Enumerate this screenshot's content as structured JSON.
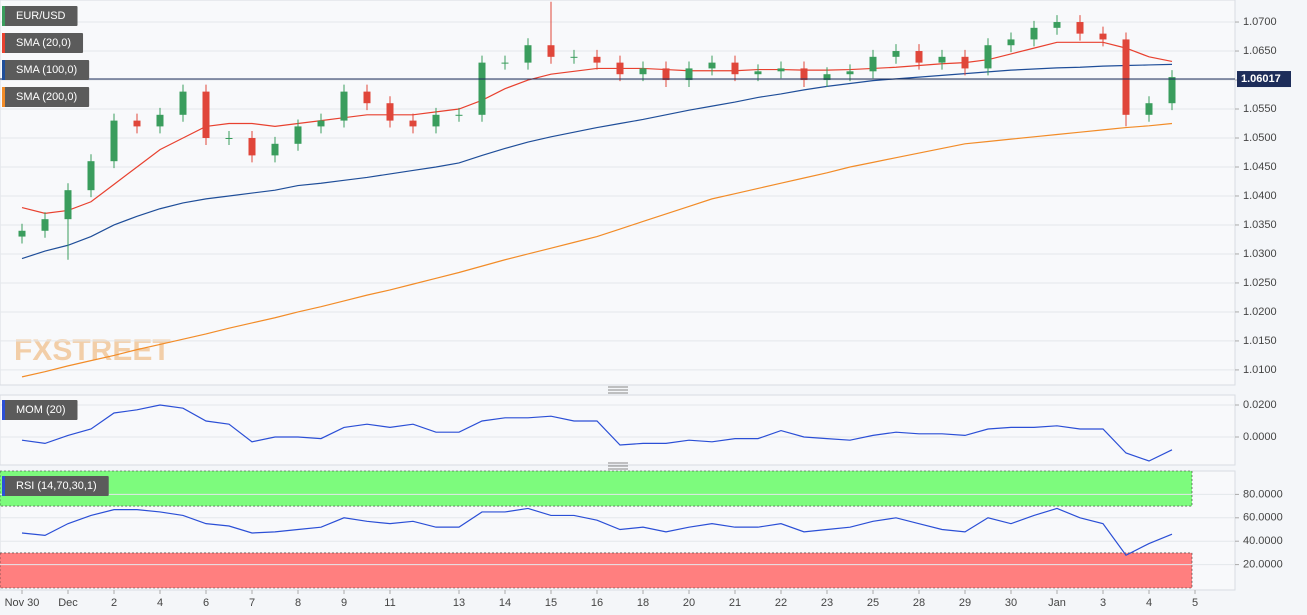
{
  "chart_data": [
    {
      "type": "candlestick",
      "symbol": "EUR/USD",
      "watermark": "FXSTREET",
      "up_color": "#3a9d5d",
      "down_color": "#e0463a",
      "categories": [
        "Nov 30",
        null,
        "Dec",
        null,
        "2",
        null,
        "4",
        null,
        "6",
        null,
        "7",
        null,
        "8",
        null,
        "9",
        null,
        "11",
        null,
        null,
        "13",
        null,
        "14",
        null,
        "15",
        null,
        "16",
        null,
        "18",
        null,
        "20",
        null,
        "21",
        null,
        "22",
        null,
        "23",
        null,
        "25",
        null,
        "28",
        null,
        "29",
        null,
        "30",
        null,
        "Jan",
        null,
        "3",
        null,
        "4",
        null,
        "5"
      ],
      "open": [
        1.033,
        1.034,
        1.036,
        1.041,
        1.046,
        1.053,
        1.052,
        1.054,
        1.058,
        1.05,
        1.05,
        1.047,
        1.049,
        1.052,
        1.053,
        1.058,
        1.056,
        1.053,
        1.052,
        1.054,
        1.054,
        1.063,
        1.063,
        1.066,
        1.064,
        1.064,
        1.063,
        1.061,
        1.062,
        1.06,
        1.062,
        1.063,
        1.061,
        1.0615,
        1.062,
        1.06,
        1.061,
        1.0615,
        1.064,
        1.065,
        1.063,
        1.064,
        1.062,
        1.066,
        1.067,
        1.069,
        1.07,
        1.068,
        1.067,
        1.054,
        1.056,
        null
      ],
      "high": [
        1.0352,
        1.0372,
        1.0422,
        1.0472,
        1.0542,
        1.0542,
        1.0552,
        1.0592,
        1.0592,
        1.0512,
        1.0512,
        1.0502,
        1.0532,
        1.0542,
        1.0592,
        1.0592,
        1.0572,
        1.0542,
        1.0552,
        1.0552,
        1.0642,
        1.0642,
        1.0672,
        1.0735,
        1.0652,
        1.0652,
        1.0642,
        1.0632,
        1.0632,
        1.0632,
        1.0642,
        1.0642,
        1.0627,
        1.0632,
        1.0632,
        1.0622,
        1.0627,
        1.0652,
        1.0662,
        1.0662,
        1.0652,
        1.0652,
        1.0672,
        1.0682,
        1.0702,
        1.0712,
        1.0712,
        1.0692,
        1.0682,
        1.0572,
        1.0617,
        null
      ],
      "low": [
        1.0318,
        1.0328,
        1.029,
        1.0398,
        1.0448,
        1.0508,
        1.0508,
        1.0528,
        1.0488,
        1.0488,
        1.0458,
        1.0458,
        1.0478,
        1.0508,
        1.0518,
        1.0548,
        1.0518,
        1.0508,
        1.0508,
        1.0528,
        1.0528,
        1.0618,
        1.0618,
        1.0628,
        1.0628,
        1.0618,
        1.0598,
        1.0598,
        1.0588,
        1.0588,
        1.0608,
        1.0598,
        1.0598,
        1.0603,
        1.0588,
        1.0588,
        1.0598,
        1.0603,
        1.0628,
        1.0618,
        1.0618,
        1.0608,
        1.0608,
        1.0648,
        1.0658,
        1.0678,
        1.0668,
        1.0658,
        1.052,
        1.0528,
        1.0548,
        null
      ],
      "close": [
        1.034,
        1.036,
        1.041,
        1.046,
        1.053,
        1.052,
        1.054,
        1.058,
        1.05,
        1.05,
        1.047,
        1.049,
        1.052,
        1.053,
        1.058,
        1.056,
        1.053,
        1.052,
        1.054,
        1.054,
        1.063,
        1.063,
        1.066,
        1.064,
        1.064,
        1.063,
        1.061,
        1.062,
        1.06,
        1.062,
        1.063,
        1.061,
        1.0615,
        1.062,
        1.06,
        1.061,
        1.0615,
        1.064,
        1.065,
        1.063,
        1.064,
        1.062,
        1.066,
        1.067,
        1.069,
        1.07,
        1.068,
        1.067,
        1.054,
        1.056,
        1.0605,
        null
      ],
      "series": [
        {
          "name": "SMA (20,0)",
          "color": "#e8412f",
          "values": [
            1.038,
            1.037,
            1.0375,
            1.039,
            1.042,
            1.045,
            1.048,
            1.05,
            1.052,
            1.0525,
            1.0525,
            1.052,
            1.0525,
            1.053,
            1.0535,
            1.054,
            1.054,
            1.054,
            1.0545,
            1.055,
            1.0565,
            1.0585,
            1.06,
            1.061,
            1.0615,
            1.062,
            1.062,
            1.062,
            1.0618,
            1.0616,
            1.0616,
            1.0616,
            1.0618,
            1.0618,
            1.0617,
            1.0617,
            1.0618,
            1.062,
            1.0622,
            1.0625,
            1.0628,
            1.063,
            1.0635,
            1.0645,
            1.0655,
            1.0665,
            1.0665,
            1.0665,
            1.0655,
            1.064,
            1.0632,
            null
          ]
        },
        {
          "name": "SMA (100,0)",
          "color": "#1f4e99",
          "values": [
            1.0292,
            1.0305,
            1.0315,
            1.033,
            1.035,
            1.0365,
            1.0378,
            1.0388,
            1.0395,
            1.04,
            1.0405,
            1.041,
            1.0418,
            1.0422,
            1.0427,
            1.0432,
            1.0438,
            1.0444,
            1.045,
            1.0457,
            1.047,
            1.0482,
            1.0493,
            1.0502,
            1.051,
            1.0518,
            1.0525,
            1.0532,
            1.054,
            1.0548,
            1.0555,
            1.0562,
            1.057,
            1.0576,
            1.0583,
            1.0589,
            1.0594,
            1.0599,
            1.0602,
            1.0605,
            1.0608,
            1.0611,
            1.0614,
            1.0617,
            1.0619,
            1.0621,
            1.0622,
            1.0624,
            1.0625,
            1.0626,
            1.0627,
            null
          ]
        },
        {
          "name": "SMA (200,0)",
          "color": "#f28c28",
          "values": [
            1.0088,
            1.0097,
            1.0107,
            1.0116,
            1.0125,
            1.0135,
            1.0144,
            1.0153,
            1.0162,
            1.0172,
            1.0181,
            1.019,
            1.02,
            1.0209,
            1.0219,
            1.0229,
            1.0238,
            1.0248,
            1.0258,
            1.0268,
            1.0279,
            1.029,
            1.03,
            1.031,
            1.032,
            1.033,
            1.0343,
            1.0356,
            1.0369,
            1.0382,
            1.0395,
            1.0404,
            1.0413,
            1.0422,
            1.0431,
            1.044,
            1.045,
            1.0458,
            1.0466,
            1.0474,
            1.0482,
            1.049,
            1.0494,
            1.0498,
            1.0502,
            1.0506,
            1.051,
            1.0514,
            1.0518,
            1.0521,
            1.0525,
            null
          ]
        }
      ],
      "last_price": 1.06017,
      "ylim": [
        1.0074,
        1.0738
      ],
      "yticks": [
        {
          "value": 1.01,
          "label": "1.0100"
        },
        {
          "value": 1.015,
          "label": "1.0150"
        },
        {
          "value": 1.02,
          "label": "1.0200"
        },
        {
          "value": 1.025,
          "label": "1.0250"
        },
        {
          "value": 1.03,
          "label": "1.0300"
        },
        {
          "value": 1.035,
          "label": "1.0350"
        },
        {
          "value": 1.04,
          "label": "1.0400"
        },
        {
          "value": 1.045,
          "label": "1.0450"
        },
        {
          "value": 1.05,
          "label": "1.0500"
        },
        {
          "value": 1.055,
          "label": "1.0550"
        },
        {
          "value": 1.06,
          "label": "1.0600"
        },
        {
          "value": 1.065,
          "label": "1.0650"
        },
        {
          "value": 1.07,
          "label": "1.0700"
        }
      ],
      "grid": true
    },
    {
      "type": "line",
      "series": [
        {
          "name": "MOM (20)",
          "color": "#2b4fd6",
          "values": [
            -0.002,
            -0.004,
            0.001,
            0.005,
            0.015,
            0.017,
            0.02,
            0.018,
            0.01,
            0.008,
            -0.003,
            0.0,
            0.0,
            -0.001,
            0.006,
            0.008,
            0.006,
            0.008,
            0.003,
            0.003,
            0.01,
            0.012,
            0.012,
            0.013,
            0.01,
            0.01,
            -0.005,
            -0.004,
            -0.004,
            -0.002,
            -0.003,
            -0.001,
            -0.001,
            0.004,
            0.0,
            -0.001,
            -0.002,
            0.001,
            0.003,
            0.002,
            0.002,
            0.001,
            0.005,
            0.006,
            0.006,
            0.007,
            0.005,
            0.005,
            -0.01,
            -0.015,
            -0.008,
            null
          ]
        }
      ],
      "ylim": [
        -0.0175,
        0.02625
      ],
      "yticks": [
        {
          "value": 0,
          "label": "0.0000"
        },
        {
          "value": 0.02,
          "label": "0.0200"
        }
      ],
      "grid": true
    },
    {
      "type": "line",
      "series": [
        {
          "name": "RSI (14,70,30,1)",
          "color": "#2b4fd6",
          "values": [
            47,
            45,
            55,
            62,
            67,
            67,
            65,
            62,
            55,
            53,
            47,
            48,
            50,
            52,
            60,
            57,
            55,
            57,
            52,
            52,
            65,
            65,
            68,
            62,
            62,
            58,
            50,
            52,
            48,
            52,
            55,
            52,
            52,
            55,
            48,
            50,
            52,
            57,
            60,
            55,
            50,
            48,
            60,
            55,
            62,
            68,
            60,
            55,
            28,
            38,
            46,
            null
          ]
        }
      ],
      "bands": [
        {
          "from": 70,
          "to": 100,
          "color": "#7dfb7d"
        },
        {
          "from": 0,
          "to": 30,
          "color": "#ff7f7f"
        }
      ],
      "ylim": [
        0,
        100
      ],
      "yticks": [
        {
          "value": 20,
          "label": "20.0000"
        },
        {
          "value": 40,
          "label": "40.0000"
        },
        {
          "value": 60,
          "label": "60.0000"
        },
        {
          "value": 80,
          "label": "80.0000"
        }
      ],
      "grid": true
    }
  ]
}
